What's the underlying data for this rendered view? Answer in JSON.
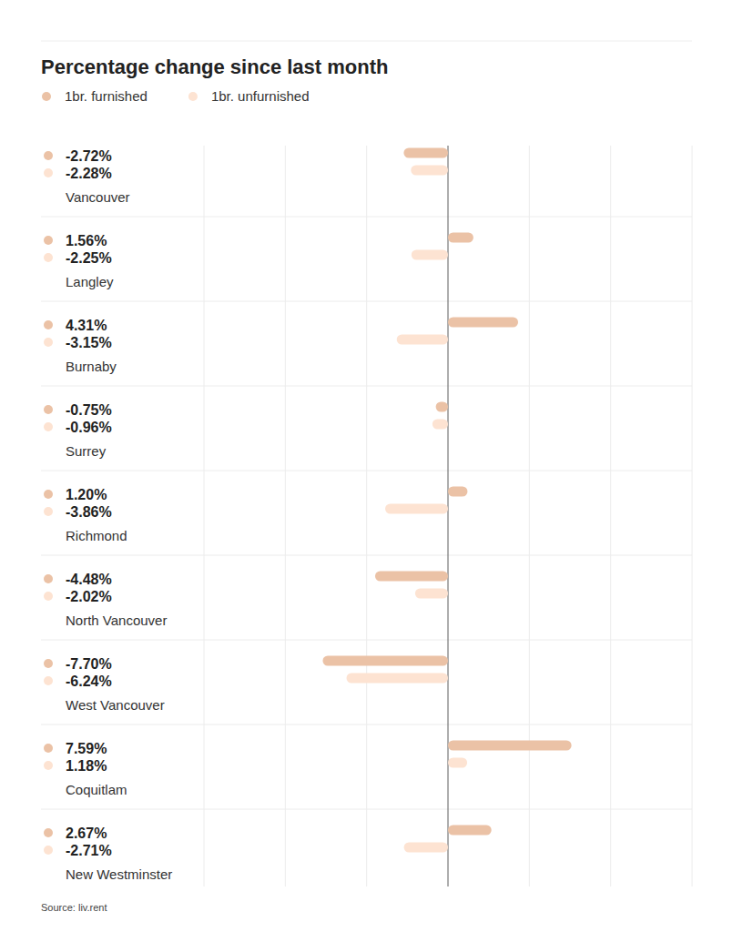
{
  "chart_data": {
    "type": "bar",
    "orientation": "horizontal",
    "title": "Percentage change since last month",
    "source": "Source: liv.rent",
    "categories": [
      "Vancouver",
      "Langley",
      "Burnaby",
      "Surrey",
      "Richmond",
      "North Vancouver",
      "West Vancouver",
      "Coquitlam",
      "New Westminster"
    ],
    "series": [
      {
        "name": "1br. furnished",
        "color": "#ebc2a6",
        "values": [
          -2.72,
          1.56,
          4.31,
          -0.75,
          1.2,
          -4.48,
          -7.7,
          7.59,
          2.67
        ],
        "value_labels": [
          "-2.72%",
          "1.56%",
          "4.31%",
          "-0.75%",
          "1.20%",
          "-4.48%",
          "-7.70%",
          "7.59%",
          "2.67%"
        ]
      },
      {
        "name": "1br. unfurnished",
        "color": "#fde3d2",
        "values": [
          -2.28,
          -2.25,
          -3.15,
          -0.96,
          -3.86,
          -2.02,
          -6.24,
          1.18,
          -2.71
        ],
        "value_labels": [
          "-2.28%",
          "-2.25%",
          "-3.15%",
          "-0.96%",
          "-3.86%",
          "-2.02%",
          "-6.24%",
          "1.18%",
          "-2.71%"
        ]
      }
    ],
    "xlim": [
      -15,
      15
    ],
    "xticks": [
      -15,
      -10,
      -5,
      0,
      5,
      10,
      15
    ],
    "grid": true,
    "tick_labels": false,
    "data_labels": true,
    "legend": "top-left"
  }
}
